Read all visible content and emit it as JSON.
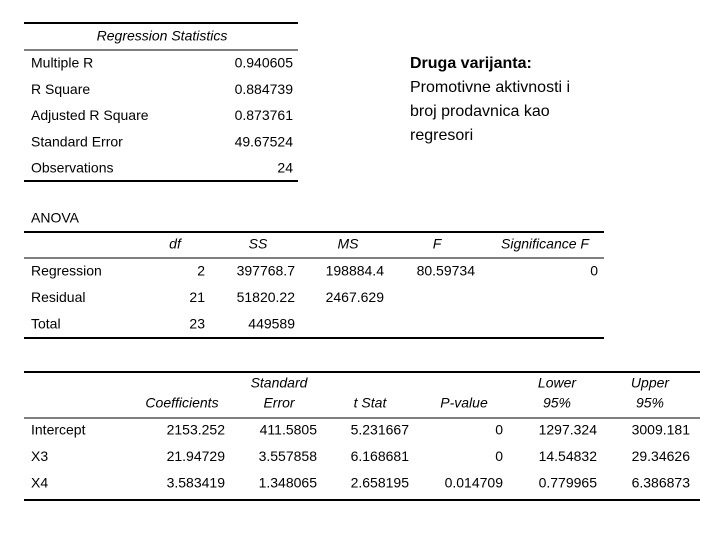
{
  "regression_statistics": {
    "title": "Regression Statistics",
    "rows": [
      [
        "Multiple R",
        "0.940605"
      ],
      [
        "R Square",
        "0.884739"
      ],
      [
        "Adjusted R Square",
        "0.873761"
      ],
      [
        "Standard Error",
        "49.67524"
      ],
      [
        "Observations",
        "24"
      ]
    ]
  },
  "note": {
    "title": "Druga varijanta:",
    "lines": [
      "Promotivne aktivnosti i",
      "broj prodavnica kao",
      "regresori"
    ]
  },
  "anova": {
    "title": "ANOVA",
    "header": [
      "df",
      "SS",
      "MS",
      "F",
      "Significance F"
    ],
    "rows": [
      [
        "Regression",
        "2",
        "397768.7",
        "198884.4",
        "80.59734",
        "0"
      ],
      [
        "Residual",
        "21",
        "51820.22",
        "2467.629"
      ],
      [
        "Total",
        "23",
        "449589"
      ]
    ]
  },
  "coefficients": {
    "header": [
      [
        "Coefficients"
      ],
      [
        "Standard",
        "Error"
      ],
      [
        "t Stat"
      ],
      [
        "P-value"
      ],
      [
        "Lower",
        "95%"
      ],
      [
        "Upper",
        "95%"
      ]
    ],
    "rows": [
      [
        "Intercept",
        "2153.252",
        "411.5805",
        "5.231667",
        "0",
        "1297.324",
        "3009.181"
      ],
      [
        "X3",
        "21.94729",
        "3.557858",
        "6.168681",
        "0",
        "14.54832",
        "29.34626"
      ],
      [
        "X4",
        "3.583419",
        "1.348065",
        "2.658195",
        "0.014709",
        "0.779965",
        "6.386873"
      ]
    ]
  }
}
